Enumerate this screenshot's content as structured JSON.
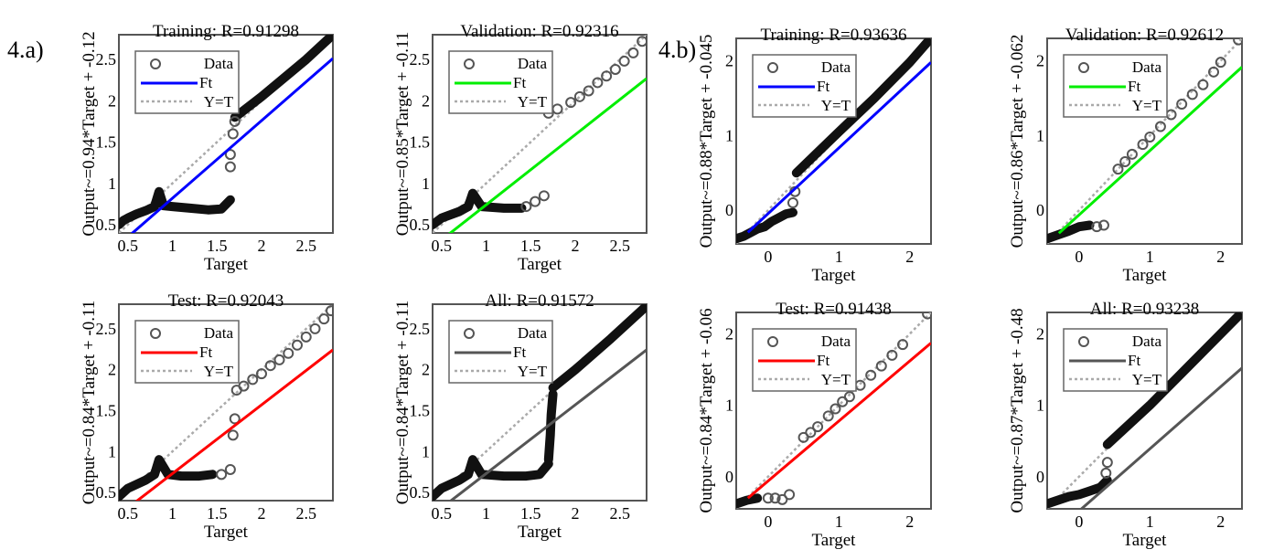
{
  "panels": {
    "a": {
      "label": "4.a)"
    },
    "b": {
      "label": "4.b)"
    }
  },
  "colors": {
    "training": "#0000ff",
    "validation": "#00ee00",
    "test": "#ff0000",
    "all": "#555555",
    "data": "#555555",
    "yt": "#aaaaaa"
  },
  "legend": {
    "data": "Data",
    "fit": "Ft",
    "yt": "Y=T"
  },
  "chart_data": [
    {
      "type": "scatter",
      "panel": "4.a)",
      "title": "Training: R=0.91298",
      "xlabel": "Target",
      "ylabel": "Output~=0.94*Target + -0.12",
      "xlim": [
        0.4,
        2.8
      ],
      "ylim": [
        0.4,
        2.8
      ],
      "xticks": [
        0.5,
        1,
        1.5,
        2,
        2.5
      ],
      "yticks": [
        0.5,
        1,
        1.5,
        2,
        2.5
      ],
      "fit": {
        "slope": 0.94,
        "intercept": -0.12
      },
      "fit_color": "#0000ff",
      "series": [
        {
          "kind": "line",
          "points": [
            [
              0.4,
              0.5
            ],
            [
              0.45,
              0.55
            ],
            [
              0.5,
              0.58
            ],
            [
              0.6,
              0.63
            ],
            [
              0.7,
              0.67
            ],
            [
              0.8,
              0.72
            ],
            [
              0.85,
              0.9
            ],
            [
              0.9,
              0.73
            ],
            [
              1.0,
              0.72
            ],
            [
              1.2,
              0.7
            ],
            [
              1.4,
              0.68
            ],
            [
              1.55,
              0.69
            ],
            [
              1.65,
              0.8
            ]
          ]
        },
        {
          "kind": "line",
          "points": [
            [
              1.7,
              1.8
            ],
            [
              2.0,
              2.05
            ],
            [
              2.5,
              2.5
            ],
            [
              2.8,
              2.8
            ]
          ]
        },
        {
          "kind": "points",
          "points": [
            [
              1.65,
              1.2
            ],
            [
              1.65,
              1.35
            ],
            [
              1.68,
              1.6
            ],
            [
              1.7,
              1.75
            ]
          ]
        }
      ]
    },
    {
      "type": "scatter",
      "panel": "4.a)",
      "title": "Validation: R=0.92316",
      "xlabel": "Target",
      "ylabel": "Output~=0.85*Target + -0.11",
      "xlim": [
        0.4,
        2.8
      ],
      "ylim": [
        0.4,
        2.8
      ],
      "xticks": [
        0.5,
        1,
        1.5,
        2,
        2.5
      ],
      "yticks": [
        0.5,
        1,
        1.5,
        2,
        2.5
      ],
      "fit": {
        "slope": 0.85,
        "intercept": -0.11
      },
      "fit_color": "#00ee00",
      "series": [
        {
          "kind": "line",
          "points": [
            [
              0.4,
              0.5
            ],
            [
              0.5,
              0.58
            ],
            [
              0.7,
              0.66
            ],
            [
              0.8,
              0.72
            ],
            [
              0.85,
              0.88
            ],
            [
              0.95,
              0.72
            ],
            [
              1.2,
              0.7
            ],
            [
              1.4,
              0.7
            ]
          ]
        },
        {
          "kind": "points",
          "points": [
            [
              1.45,
              0.72
            ],
            [
              1.55,
              0.78
            ],
            [
              1.65,
              0.85
            ]
          ]
        },
        {
          "kind": "points",
          "points": [
            [
              1.7,
              1.85
            ],
            [
              1.8,
              1.9
            ],
            [
              1.95,
              1.98
            ],
            [
              2.05,
              2.05
            ],
            [
              2.15,
              2.12
            ],
            [
              2.25,
              2.22
            ],
            [
              2.35,
              2.3
            ],
            [
              2.45,
              2.38
            ],
            [
              2.55,
              2.48
            ],
            [
              2.65,
              2.58
            ],
            [
              2.75,
              2.72
            ]
          ]
        }
      ]
    },
    {
      "type": "scatter",
      "panel": "4.b)",
      "title": "Training: R=0.93636",
      "xlabel": "Target",
      "ylabel": "Output~=0.88*Target + -0.045",
      "xlim": [
        -0.45,
        2.3
      ],
      "ylim": [
        -0.45,
        2.3
      ],
      "xticks": [
        0,
        1,
        2
      ],
      "yticks": [
        0,
        1,
        2
      ],
      "fit": {
        "slope": 0.88,
        "intercept": -0.045
      },
      "fit_color": "#0000ff",
      "series": [
        {
          "kind": "line",
          "points": [
            [
              -0.45,
              -0.38
            ],
            [
              -0.35,
              -0.35
            ],
            [
              -0.25,
              -0.3
            ],
            [
              -0.15,
              -0.25
            ],
            [
              -0.05,
              -0.22
            ],
            [
              0.05,
              -0.15
            ],
            [
              0.15,
              -0.1
            ],
            [
              0.25,
              -0.05
            ],
            [
              0.35,
              -0.03
            ]
          ]
        },
        {
          "kind": "line",
          "points": [
            [
              0.4,
              0.5
            ],
            [
              1.0,
              1.05
            ],
            [
              1.5,
              1.5
            ],
            [
              2.0,
              1.98
            ],
            [
              2.25,
              2.25
            ]
          ]
        },
        {
          "kind": "points",
          "points": [
            [
              0.35,
              0.1
            ],
            [
              0.38,
              0.25
            ]
          ]
        }
      ]
    },
    {
      "type": "scatter",
      "panel": "4.b)",
      "title": "Validation: R=0.92612",
      "xlabel": "Target",
      "ylabel": "Output~=0.86*Target + -0.062",
      "xlim": [
        -0.45,
        2.3
      ],
      "ylim": [
        -0.45,
        2.3
      ],
      "xticks": [
        0,
        1,
        2
      ],
      "yticks": [
        0,
        1,
        2
      ],
      "fit": {
        "slope": 0.86,
        "intercept": -0.062
      },
      "fit_color": "#00ee00",
      "series": [
        {
          "kind": "line",
          "points": [
            [
              -0.45,
              -0.38
            ],
            [
              -0.3,
              -0.33
            ],
            [
              -0.15,
              -0.28
            ],
            [
              0.0,
              -0.22
            ],
            [
              0.15,
              -0.2
            ]
          ]
        },
        {
          "kind": "points",
          "points": [
            [
              0.25,
              -0.22
            ],
            [
              0.35,
              -0.2
            ]
          ]
        },
        {
          "kind": "points",
          "points": [
            [
              0.55,
              0.55
            ],
            [
              0.65,
              0.65
            ],
            [
              0.75,
              0.75
            ],
            [
              0.9,
              0.88
            ],
            [
              1.0,
              0.98
            ],
            [
              1.15,
              1.12
            ],
            [
              1.3,
              1.28
            ],
            [
              1.45,
              1.42
            ],
            [
              1.6,
              1.55
            ],
            [
              1.75,
              1.68
            ],
            [
              1.9,
              1.85
            ],
            [
              2.0,
              1.98
            ],
            [
              2.25,
              2.28
            ]
          ]
        }
      ]
    },
    {
      "type": "scatter",
      "panel": "4.a)",
      "title": "Test: R=0.92043",
      "xlabel": "Target",
      "ylabel": "Output~=0.84*Target + -0.11",
      "xlim": [
        0.4,
        2.8
      ],
      "ylim": [
        0.4,
        2.8
      ],
      "xticks": [
        0.5,
        1,
        1.5,
        2,
        2.5
      ],
      "yticks": [
        0.5,
        1,
        1.5,
        2,
        2.5
      ],
      "fit": {
        "slope": 0.84,
        "intercept": -0.11
      },
      "fit_color": "#ff0000",
      "series": [
        {
          "kind": "line",
          "points": [
            [
              0.4,
              0.45
            ],
            [
              0.5,
              0.55
            ],
            [
              0.6,
              0.6
            ],
            [
              0.7,
              0.65
            ],
            [
              0.8,
              0.72
            ],
            [
              0.85,
              0.9
            ],
            [
              0.95,
              0.72
            ],
            [
              1.1,
              0.7
            ],
            [
              1.3,
              0.7
            ],
            [
              1.45,
              0.72
            ]
          ]
        },
        {
          "kind": "points",
          "points": [
            [
              1.55,
              0.72
            ],
            [
              1.65,
              0.78
            ],
            [
              1.68,
              1.2
            ],
            [
              1.7,
              1.4
            ],
            [
              1.72,
              1.75
            ]
          ]
        },
        {
          "kind": "points",
          "points": [
            [
              1.8,
              1.8
            ],
            [
              1.9,
              1.88
            ],
            [
              2.0,
              1.95
            ],
            [
              2.1,
              2.05
            ],
            [
              2.2,
              2.12
            ],
            [
              2.3,
              2.2
            ],
            [
              2.4,
              2.3
            ],
            [
              2.5,
              2.4
            ],
            [
              2.6,
              2.5
            ],
            [
              2.7,
              2.62
            ],
            [
              2.78,
              2.72
            ]
          ]
        }
      ]
    },
    {
      "type": "scatter",
      "panel": "4.a)",
      "title": "All: R=0.91572",
      "xlabel": "Target",
      "ylabel": "Output~=0.84*Target + -0.11",
      "xlim": [
        0.4,
        2.8
      ],
      "ylim": [
        0.4,
        2.8
      ],
      "xticks": [
        0.5,
        1,
        1.5,
        2,
        2.5
      ],
      "yticks": [
        0.5,
        1,
        1.5,
        2,
        2.5
      ],
      "fit": {
        "slope": 0.84,
        "intercept": -0.11
      },
      "fit_color": "#555555",
      "series": [
        {
          "kind": "line",
          "points": [
            [
              0.4,
              0.45
            ],
            [
              0.5,
              0.55
            ],
            [
              0.7,
              0.65
            ],
            [
              0.8,
              0.72
            ],
            [
              0.85,
              0.9
            ],
            [
              0.95,
              0.72
            ],
            [
              1.2,
              0.7
            ],
            [
              1.45,
              0.7
            ],
            [
              1.6,
              0.72
            ],
            [
              1.7,
              0.85
            ]
          ]
        },
        {
          "kind": "line",
          "points": [
            [
              1.7,
              0.9
            ],
            [
              1.72,
              1.2
            ],
            [
              1.73,
              1.45
            ],
            [
              1.75,
              1.7
            ]
          ]
        },
        {
          "kind": "line",
          "points": [
            [
              1.75,
              1.78
            ],
            [
              2.0,
              2.0
            ],
            [
              2.4,
              2.38
            ],
            [
              2.8,
              2.78
            ]
          ]
        }
      ]
    },
    {
      "type": "scatter",
      "panel": "4.b)",
      "title": "Test: R=0.91438",
      "xlabel": "Target",
      "ylabel": "Output~=0.84*Target + -0.06",
      "xlim": [
        -0.45,
        2.3
      ],
      "ylim": [
        -0.45,
        2.3
      ],
      "xticks": [
        0,
        1,
        2
      ],
      "yticks": [
        0,
        1,
        2
      ],
      "fit": {
        "slope": 0.84,
        "intercept": -0.06
      },
      "fit_color": "#ff0000",
      "series": [
        {
          "kind": "line",
          "points": [
            [
              -0.45,
              -0.38
            ],
            [
              -0.3,
              -0.33
            ],
            [
              -0.15,
              -0.3
            ]
          ]
        },
        {
          "kind": "points",
          "points": [
            [
              0.0,
              -0.3
            ],
            [
              0.1,
              -0.3
            ],
            [
              0.2,
              -0.32
            ],
            [
              0.3,
              -0.25
            ]
          ]
        },
        {
          "kind": "points",
          "points": [
            [
              0.5,
              0.55
            ],
            [
              0.6,
              0.62
            ],
            [
              0.7,
              0.7
            ],
            [
              0.85,
              0.85
            ],
            [
              0.95,
              0.95
            ],
            [
              1.05,
              1.05
            ],
            [
              1.15,
              1.12
            ],
            [
              1.3,
              1.28
            ],
            [
              1.45,
              1.42
            ],
            [
              1.6,
              1.55
            ],
            [
              1.75,
              1.7
            ],
            [
              1.9,
              1.85
            ],
            [
              2.25,
              2.28
            ]
          ]
        }
      ]
    },
    {
      "type": "scatter",
      "panel": "4.b)",
      "title": "All: R=0.93238",
      "xlabel": "Target",
      "ylabel": "Output~=0.87*Target + -0.48",
      "xlim": [
        -0.45,
        2.3
      ],
      "ylim": [
        -0.45,
        2.3
      ],
      "xticks": [
        0,
        1,
        2
      ],
      "yticks": [
        0,
        1,
        2
      ],
      "fit": {
        "slope": 0.87,
        "intercept": -0.48
      },
      "fit_color": "#555555",
      "series": [
        {
          "kind": "line",
          "points": [
            [
              -0.45,
              -0.38
            ],
            [
              -0.3,
              -0.33
            ],
            [
              -0.15,
              -0.28
            ],
            [
              0.0,
              -0.25
            ],
            [
              0.15,
              -0.2
            ],
            [
              0.3,
              -0.15
            ],
            [
              0.4,
              -0.05
            ]
          ]
        },
        {
          "kind": "points",
          "points": [
            [
              0.38,
              0.05
            ],
            [
              0.4,
              0.2
            ]
          ]
        },
        {
          "kind": "line",
          "points": [
            [
              0.4,
              0.45
            ],
            [
              1.0,
              1.0
            ],
            [
              1.6,
              1.6
            ],
            [
              2.25,
              2.25
            ]
          ]
        }
      ]
    }
  ]
}
